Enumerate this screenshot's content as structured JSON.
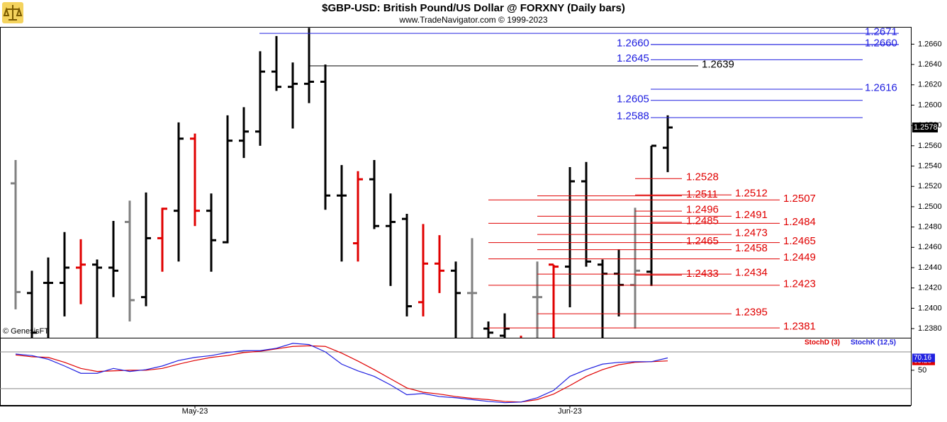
{
  "chart_data": [
    {
      "type": "ohlc",
      "title": "$GBP-USD:  British Pound/US Dollar @ FORXNY  (Daily bars)",
      "subtitle": "www.TradeNavigator.com © 1999-2023",
      "source": "© GenesisFT",
      "categories": [
        null,
        null,
        null,
        null,
        null,
        null,
        null,
        null,
        null,
        null,
        null,
        "May-23",
        null,
        null,
        null,
        null,
        null,
        null,
        null,
        null,
        null,
        null,
        null,
        null,
        null,
        null,
        null,
        null,
        null,
        null,
        null,
        null,
        null,
        null,
        "Jun-23",
        null,
        null,
        null,
        null,
        null,
        null
      ],
      "open": [
        1.2523,
        1.2415,
        1.2425,
        1.2425,
        1.244,
        1.2443,
        1.244,
        1.2485,
        1.2411,
        1.2469,
        1.2496,
        1.2567,
        1.2496,
        1.2465,
        1.2565,
        1.2574,
        1.2633,
        1.2618,
        1.2621,
        1.2623,
        1.2511,
        1.2464,
        1.2527,
        1.2481,
        1.2488,
        1.2406,
        1.2444,
        1.2437,
        1.2415,
        1.238,
        1.2373,
        1.2369,
        1.2411,
        1.2443,
        1.2441,
        1.2525,
        1.2443,
        1.2434,
        1.2423,
        1.2436,
        1.2558
      ],
      "high": [
        1.2546,
        1.2437,
        1.245,
        1.2475,
        1.2468,
        1.2448,
        1.2486,
        1.2506,
        1.2514,
        1.2499,
        1.2583,
        1.2572,
        1.2513,
        1.259,
        1.2598,
        1.2653,
        1.2668,
        1.2642,
        1.2676,
        1.264,
        1.2541,
        1.2535,
        1.2546,
        1.2513,
        1.2493,
        1.2483,
        1.2472,
        1.2446,
        1.2469,
        1.2387,
        1.2395,
        1.2373,
        1.2446,
        1.2443,
        1.2539,
        1.2544,
        1.2448,
        1.2458,
        1.2499,
        1.256,
        1.259
      ],
      "low": [
        1.2399,
        1.2365,
        1.2365,
        1.2392,
        1.2404,
        1.2365,
        1.2411,
        1.2387,
        1.2402,
        1.2436,
        1.2446,
        1.2481,
        1.2436,
        1.2464,
        1.2548,
        1.256,
        1.2614,
        1.2577,
        1.2602,
        1.2497,
        1.2446,
        1.2446,
        1.2478,
        1.2422,
        1.2392,
        1.2392,
        1.2415,
        1.2365,
        1.2365,
        1.236,
        1.236,
        1.2355,
        1.236,
        1.236,
        1.2401,
        1.2441,
        1.2365,
        1.2392,
        1.238,
        1.2422,
        1.2534
      ],
      "close": [
        1.2416,
        1.2376,
        1.2425,
        1.244,
        1.2443,
        1.244,
        1.2437,
        1.2408,
        1.2469,
        1.2498,
        1.2567,
        1.2496,
        1.2467,
        1.2565,
        1.2574,
        1.2633,
        1.2618,
        1.2621,
        1.2623,
        1.2511,
        1.2511,
        1.2527,
        1.2481,
        1.2485,
        1.2402,
        1.2444,
        1.2437,
        1.2415,
        1.2415,
        1.2376,
        1.238,
        1.2366,
        1.2411,
        1.2441,
        1.2525,
        1.2446,
        1.2434,
        1.2423,
        1.2437,
        1.256,
        1.2578
      ],
      "bar_colors": [
        "#808080",
        "#000000",
        "#000000",
        "#000000",
        "#e00000",
        "#000000",
        "#000000",
        "#808080",
        "#000000",
        "#e00000",
        "#000000",
        "#e00000",
        "#000000",
        "#000000",
        "#000000",
        "#000000",
        "#000000",
        "#000000",
        "#000000",
        "#000000",
        "#000000",
        "#e00000",
        "#000000",
        "#000000",
        "#000000",
        "#e00000",
        "#e00000",
        "#000000",
        "#808080",
        "#000000",
        "#000000",
        "#e00000",
        "#808080",
        "#e00000",
        "#000000",
        "#000000",
        "#000000",
        "#000000",
        "#808080",
        "#000000",
        "#000000"
      ],
      "last_price": 1.2578,
      "ylim": [
        1.2371,
        1.2677
      ],
      "yticks": [
        {
          "value": 1.238,
          "label": "1.2380"
        },
        {
          "value": 1.24,
          "label": "1.2400"
        },
        {
          "value": 1.242,
          "label": "1.2420"
        },
        {
          "value": 1.244,
          "label": "1.2440"
        },
        {
          "value": 1.246,
          "label": "1.2460"
        },
        {
          "value": 1.248,
          "label": "1.2480"
        },
        {
          "value": 1.25,
          "label": "1.2500"
        },
        {
          "value": 1.252,
          "label": "1.2520"
        },
        {
          "value": 1.254,
          "label": "1.2540"
        },
        {
          "value": 1.256,
          "label": "1.2560"
        },
        {
          "value": 1.258,
          "label": "1.2580"
        },
        {
          "value": 1.26,
          "label": "1.2600"
        },
        {
          "value": 1.262,
          "label": "1.2620"
        },
        {
          "value": 1.264,
          "label": "1.2640"
        },
        {
          "value": 1.266,
          "label": "1.2660"
        }
      ],
      "levels": [
        {
          "value": 1.2671,
          "color": "#2020e0"
        },
        {
          "value": {
            "value": 1.266,
            "label": "1.2660"
          },
          "color": "#2020e0"
        },
        {
          "value": {
            "value": 1.266,
            "label": "1.2660"
          },
          "color": "#2020e0"
        },
        {
          "value": 1.2645,
          "color": "#2020e0"
        },
        {
          "value": 1.2639,
          "color": "#000000"
        },
        {
          "value": 1.2616,
          "color": "#2020e0"
        },
        {
          "value": 1.2605,
          "color": "#2020e0"
        },
        {
          "value": 1.2588,
          "color": "#2020e0"
        },
        {
          "value": 1.2528,
          "color": "#e00000"
        },
        {
          "value": 1.2511,
          "color": "#e00000"
        },
        {
          "value": 1.2512,
          "color": "#e00000"
        },
        {
          "value": 1.2507,
          "color": "#e00000"
        },
        {
          "value": 1.2496,
          "color": "#e00000"
        },
        {
          "value": 1.2491,
          "color": "#e00000"
        },
        {
          "value": 1.2485,
          "color": "#e00000"
        },
        {
          "value": 1.2484,
          "color": "#e00000"
        },
        {
          "value": 1.2473,
          "color": "#e00000"
        },
        {
          "value": 1.2465,
          "color": "#e00000"
        },
        {
          "value": 1.2465,
          "color": "#e00000"
        },
        {
          "value": 1.2458,
          "color": "#e00000"
        },
        {
          "value": 1.2449,
          "color": "#e00000"
        },
        {
          "value": 1.2433,
          "color": "#e00000"
        },
        {
          "value": 1.2434,
          "color": "#e00000"
        },
        {
          "value": 1.2423,
          "color": "#e00000"
        },
        {
          "value": 1.2395,
          "color": "#e00000"
        },
        {
          "value": 1.2381,
          "color": "#e00000"
        }
      ]
    },
    {
      "type": "line",
      "series": [
        {
          "name": "StochD (3)",
          "color": "#e00000",
          "values": [
            75,
            72,
            71,
            63,
            53,
            48,
            49,
            50,
            50,
            53,
            60,
            66,
            71,
            74,
            79,
            81,
            85,
            89,
            90,
            89,
            78,
            65,
            51,
            36,
            21,
            14,
            11,
            7,
            4,
            2,
            -1,
            -2,
            2,
            11,
            25,
            40,
            51,
            59,
            63,
            64,
            65.28
          ]
        },
        {
          "name": "StochK (12,5)",
          "color": "#2020e0",
          "values": [
            76.5,
            74,
            68,
            57,
            45,
            45,
            53,
            48,
            51,
            57,
            66,
            71,
            74,
            79,
            82,
            82,
            86,
            94,
            92,
            80,
            60,
            49,
            40,
            26,
            10,
            12,
            7,
            5,
            2,
            -1,
            -3,
            -2,
            5,
            17,
            40,
            51,
            60,
            63,
            64,
            64,
            70.16
          ]
        }
      ],
      "ylim": [
        -8,
        102
      ],
      "yticks": [
        50
      ],
      "hlines": [
        80,
        20
      ]
    }
  ]
}
